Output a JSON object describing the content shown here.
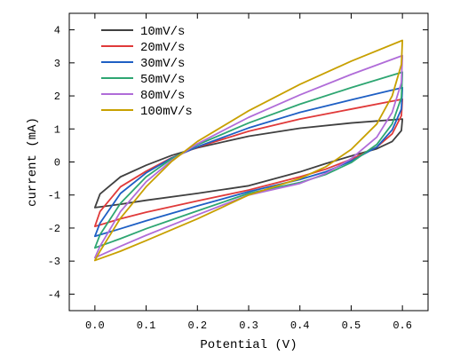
{
  "chart_data": {
    "type": "line",
    "title": "",
    "xlabel": "Potential (V)",
    "ylabel": "current (mA)",
    "xlim": [
      -0.05,
      0.65
    ],
    "ylim": [
      -4.5,
      4.5
    ],
    "xticks": [
      "0.0",
      "0.1",
      "0.2",
      "0.3",
      "0.4",
      "0.5",
      "0.6"
    ],
    "xtick_values": [
      0.0,
      0.1,
      0.2,
      0.3,
      0.4,
      0.5,
      0.6
    ],
    "yticks": [
      "-4",
      "-3",
      "-2",
      "-1",
      "0",
      "1",
      "2",
      "3",
      "4"
    ],
    "ytick_values": [
      -4,
      -3,
      -2,
      -1,
      0,
      1,
      2,
      3,
      4
    ],
    "grid": false,
    "legend_position": "top-left",
    "series": [
      {
        "name": "10mV/s",
        "color": "#404040",
        "points": [
          [
            0.0,
            -1.38
          ],
          [
            0.01,
            -0.97
          ],
          [
            0.05,
            -0.45
          ],
          [
            0.1,
            -0.1
          ],
          [
            0.15,
            0.2
          ],
          [
            0.2,
            0.43
          ],
          [
            0.3,
            0.78
          ],
          [
            0.4,
            1.02
          ],
          [
            0.5,
            1.18
          ],
          [
            0.6,
            1.3
          ],
          [
            0.598,
            0.95
          ],
          [
            0.58,
            0.62
          ],
          [
            0.55,
            0.4
          ],
          [
            0.5,
            0.18
          ],
          [
            0.45,
            -0.05
          ],
          [
            0.4,
            -0.3
          ],
          [
            0.3,
            -0.72
          ],
          [
            0.2,
            -0.95
          ],
          [
            0.1,
            -1.16
          ],
          [
            0.05,
            -1.28
          ],
          [
            0.0,
            -1.38
          ]
        ]
      },
      {
        "name": "20mV/s",
        "color": "#e03a3a",
        "points": [
          [
            0.0,
            -1.95
          ],
          [
            0.01,
            -1.5
          ],
          [
            0.05,
            -0.75
          ],
          [
            0.1,
            -0.28
          ],
          [
            0.15,
            0.13
          ],
          [
            0.2,
            0.45
          ],
          [
            0.3,
            0.93
          ],
          [
            0.4,
            1.3
          ],
          [
            0.5,
            1.6
          ],
          [
            0.6,
            1.9
          ],
          [
            0.598,
            1.4
          ],
          [
            0.58,
            0.85
          ],
          [
            0.55,
            0.45
          ],
          [
            0.5,
            0.08
          ],
          [
            0.45,
            -0.22
          ],
          [
            0.4,
            -0.45
          ],
          [
            0.3,
            -0.85
          ],
          [
            0.2,
            -1.18
          ],
          [
            0.1,
            -1.52
          ],
          [
            0.05,
            -1.72
          ],
          [
            0.0,
            -1.95
          ]
        ]
      },
      {
        "name": "30mV/s",
        "color": "#1e5fc4",
        "points": [
          [
            0.0,
            -2.25
          ],
          [
            0.01,
            -1.85
          ],
          [
            0.05,
            -0.95
          ],
          [
            0.1,
            -0.33
          ],
          [
            0.15,
            0.12
          ],
          [
            0.2,
            0.46
          ],
          [
            0.3,
            1.03
          ],
          [
            0.4,
            1.5
          ],
          [
            0.5,
            1.88
          ],
          [
            0.6,
            2.25
          ],
          [
            0.598,
            1.6
          ],
          [
            0.58,
            0.97
          ],
          [
            0.55,
            0.45
          ],
          [
            0.5,
            0.03
          ],
          [
            0.45,
            -0.3
          ],
          [
            0.4,
            -0.53
          ],
          [
            0.3,
            -0.9
          ],
          [
            0.2,
            -1.33
          ],
          [
            0.1,
            -1.78
          ],
          [
            0.05,
            -2.02
          ],
          [
            0.0,
            -2.25
          ]
        ]
      },
      {
        "name": "50mV/s",
        "color": "#2ea672",
        "points": [
          [
            0.0,
            -2.6
          ],
          [
            0.01,
            -2.2
          ],
          [
            0.05,
            -1.25
          ],
          [
            0.1,
            -0.45
          ],
          [
            0.15,
            0.1
          ],
          [
            0.2,
            0.52
          ],
          [
            0.3,
            1.18
          ],
          [
            0.4,
            1.75
          ],
          [
            0.5,
            2.25
          ],
          [
            0.6,
            2.72
          ],
          [
            0.598,
            1.95
          ],
          [
            0.58,
            1.15
          ],
          [
            0.55,
            0.53
          ],
          [
            0.5,
            -0.02
          ],
          [
            0.45,
            -0.38
          ],
          [
            0.4,
            -0.62
          ],
          [
            0.3,
            -0.95
          ],
          [
            0.2,
            -1.48
          ],
          [
            0.1,
            -2.02
          ],
          [
            0.05,
            -2.32
          ],
          [
            0.0,
            -2.6
          ]
        ]
      },
      {
        "name": "80mV/s",
        "color": "#b06cd8",
        "points": [
          [
            0.0,
            -2.9
          ],
          [
            0.01,
            -2.55
          ],
          [
            0.05,
            -1.5
          ],
          [
            0.1,
            -0.6
          ],
          [
            0.15,
            0.05
          ],
          [
            0.2,
            0.55
          ],
          [
            0.3,
            1.35
          ],
          [
            0.4,
            2.03
          ],
          [
            0.5,
            2.65
          ],
          [
            0.6,
            3.22
          ],
          [
            0.598,
            2.4
          ],
          [
            0.58,
            1.5
          ],
          [
            0.55,
            0.75
          ],
          [
            0.5,
            0.1
          ],
          [
            0.45,
            -0.35
          ],
          [
            0.4,
            -0.65
          ],
          [
            0.3,
            -1.0
          ],
          [
            0.2,
            -1.6
          ],
          [
            0.1,
            -2.22
          ],
          [
            0.05,
            -2.55
          ],
          [
            0.0,
            -2.9
          ]
        ]
      },
      {
        "name": "100mV/s",
        "color": "#c8a000",
        "points": [
          [
            0.0,
            -2.98
          ],
          [
            0.01,
            -2.7
          ],
          [
            0.05,
            -1.7
          ],
          [
            0.1,
            -0.75
          ],
          [
            0.15,
            0.02
          ],
          [
            0.2,
            0.62
          ],
          [
            0.3,
            1.55
          ],
          [
            0.4,
            2.35
          ],
          [
            0.5,
            3.05
          ],
          [
            0.6,
            3.68
          ],
          [
            0.598,
            2.95
          ],
          [
            0.58,
            2.0
          ],
          [
            0.55,
            1.15
          ],
          [
            0.5,
            0.38
          ],
          [
            0.45,
            -0.15
          ],
          [
            0.4,
            -0.5
          ],
          [
            0.3,
            -1.0
          ],
          [
            0.2,
            -1.72
          ],
          [
            0.1,
            -2.38
          ],
          [
            0.05,
            -2.7
          ],
          [
            0.0,
            -2.98
          ]
        ]
      }
    ]
  }
}
